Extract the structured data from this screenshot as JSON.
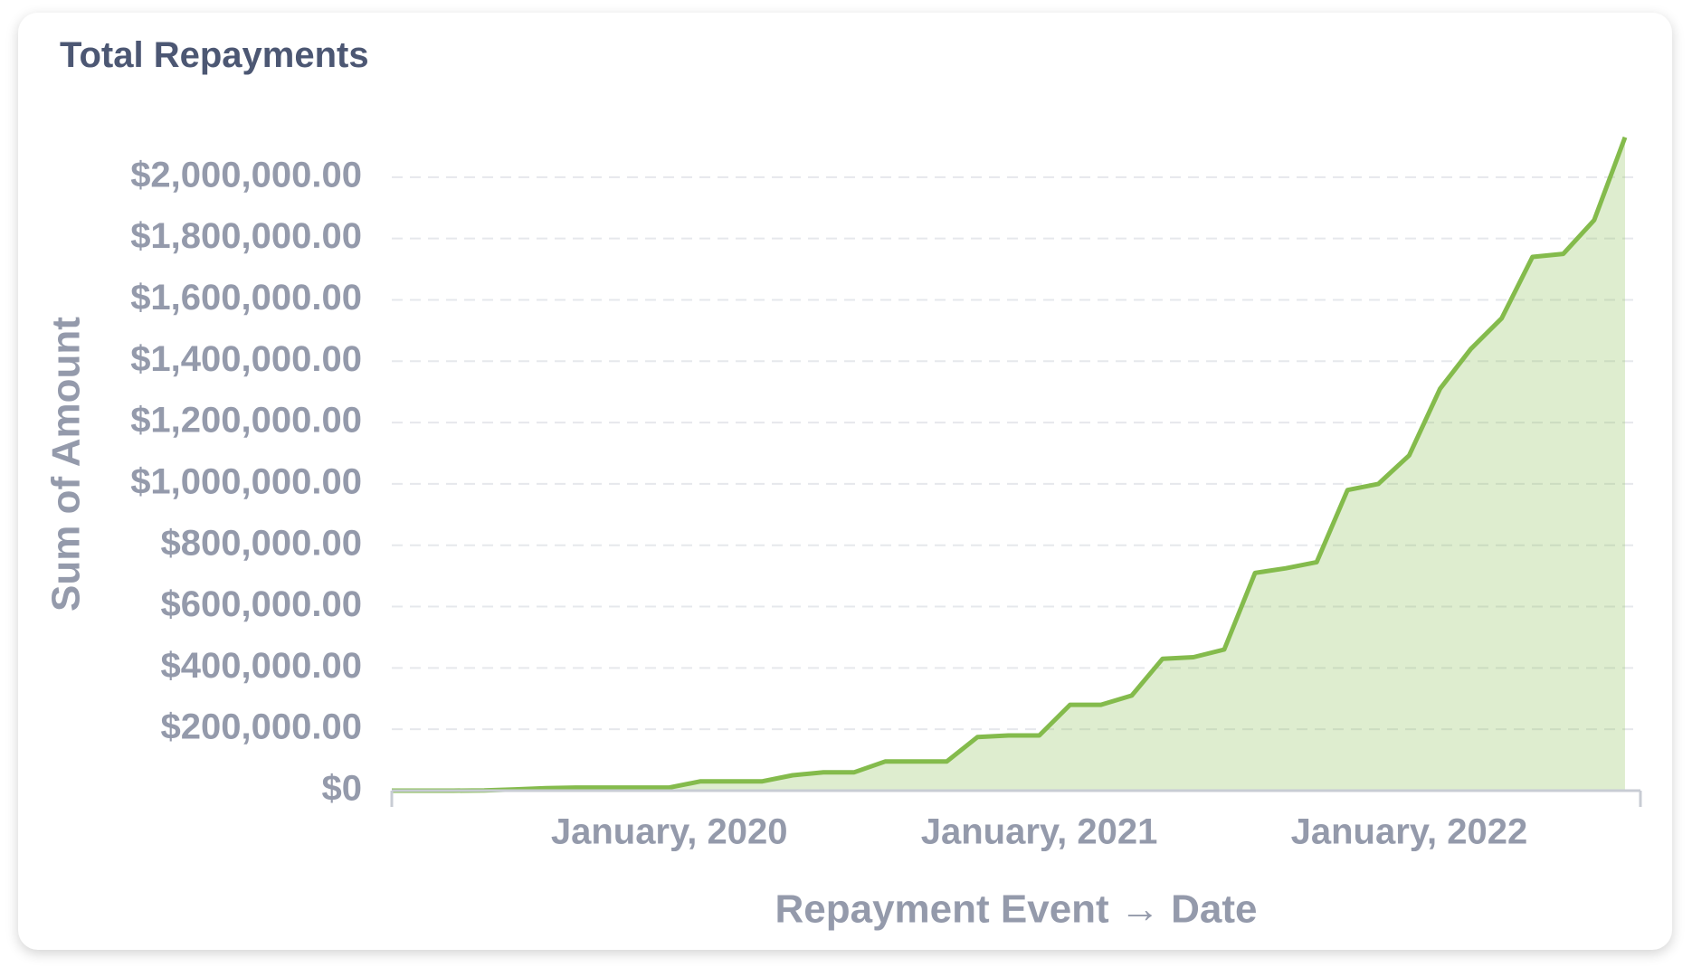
{
  "chart_data": {
    "type": "area",
    "title": "Total Repayments",
    "x_label": "Repayment Event → Date",
    "y_label": "Sum of Amount",
    "color": "#84bb4c",
    "x": [
      "2019-04",
      "2019-05",
      "2019-06",
      "2019-07",
      "2019-08",
      "2019-09",
      "2019-10",
      "2019-11",
      "2019-12",
      "2020-01",
      "2020-02",
      "2020-03",
      "2020-04",
      "2020-05",
      "2020-06",
      "2020-07",
      "2020-08",
      "2020-09",
      "2020-10",
      "2020-11",
      "2020-12",
      "2021-01",
      "2021-02",
      "2021-03",
      "2021-04",
      "2021-05",
      "2021-06",
      "2021-07",
      "2021-08",
      "2021-09",
      "2021-10",
      "2021-11",
      "2021-12",
      "2022-01",
      "2022-02",
      "2022-03",
      "2022-04",
      "2022-05",
      "2022-06",
      "2022-07",
      "2022-08"
    ],
    "values": [
      0,
      0,
      0,
      1000,
      4000,
      8000,
      10000,
      10000,
      10000,
      10000,
      30000,
      30000,
      30000,
      50000,
      60000,
      60000,
      95000,
      95000,
      95000,
      175000,
      180000,
      180000,
      280000,
      280000,
      310000,
      430000,
      435000,
      460000,
      710000,
      725000,
      745000,
      980000,
      1000000,
      1093000,
      1310000,
      1440000,
      1540000,
      1740000,
      1750000,
      1860000,
      2130000
    ],
    "xlim": [
      "2019-04",
      "2022-08"
    ],
    "xticks": [
      {
        "value": "2020-01",
        "label": "January, 2020"
      },
      {
        "value": "2021-01",
        "label": "January, 2021"
      },
      {
        "value": "2022-01",
        "label": "January, 2022"
      }
    ],
    "ylim": [
      0,
      2150000
    ],
    "yticks": [
      {
        "value": 0,
        "label": "$0"
      },
      {
        "value": 200000,
        "label": "$200,000.00"
      },
      {
        "value": 400000,
        "label": "$400,000.00"
      },
      {
        "value": 600000,
        "label": "$600,000.00"
      },
      {
        "value": 800000,
        "label": "$800,000.00"
      },
      {
        "value": 1000000,
        "label": "$1,000,000.00"
      },
      {
        "value": 1200000,
        "label": "$1,200,000.00"
      },
      {
        "value": 1400000,
        "label": "$1,400,000.00"
      },
      {
        "value": 1600000,
        "label": "$1,600,000.00"
      },
      {
        "value": 1800000,
        "label": "$1,800,000.00"
      },
      {
        "value": 2000000,
        "label": "$2,000,000.00"
      }
    ],
    "grid": true
  }
}
